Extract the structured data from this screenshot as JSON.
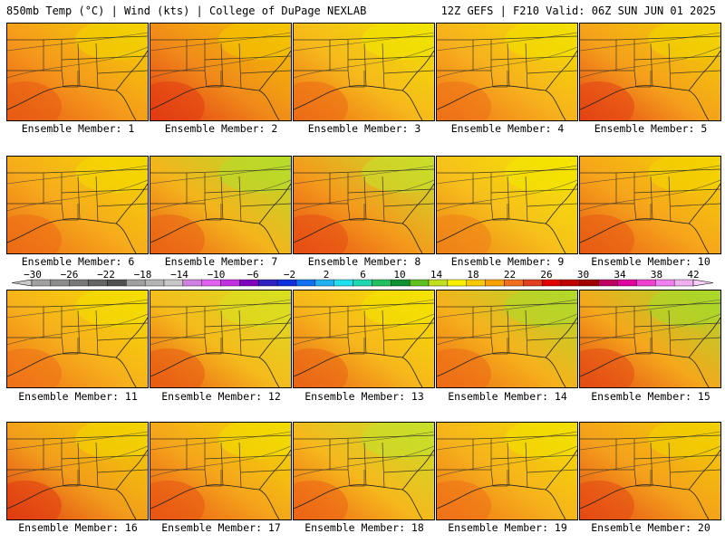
{
  "header": {
    "left": "850mb Temp (°C) | Wind (kts) | College of DuPage NEXLAB",
    "right": "12Z GEFS | F210 Valid: 06Z SUN JUN 01 2025"
  },
  "colorbar": {
    "labels": [
      "−30",
      "−26",
      "−22",
      "−18",
      "−14",
      "−10",
      "−6",
      "−2",
      "2",
      "6",
      "10",
      "14",
      "18",
      "22",
      "26",
      "30",
      "34",
      "38",
      "42"
    ],
    "colors": [
      "#a0a0a0",
      "#8c8c8c",
      "#787878",
      "#646464",
      "#505050",
      "#a0a0a0",
      "#b4b4b4",
      "#c8c8c8",
      "#d080e0",
      "#e060f0",
      "#c030e0",
      "#8000c0",
      "#3020c0",
      "#1030e0",
      "#1070f0",
      "#20b0f0",
      "#20e0f0",
      "#20d8b0",
      "#20c060",
      "#109030",
      "#60c020",
      "#c0e020",
      "#f8f000",
      "#f8c800",
      "#f8a000",
      "#f07020",
      "#e04020",
      "#e00000",
      "#c00000",
      "#a00000",
      "#c00060",
      "#e000a0",
      "#f040d0",
      "#f080f0",
      "#f0b0f0"
    ]
  },
  "members": [
    {
      "caption": "Ensemble Member: 1",
      "base": "#f59a1c",
      "warm": "#e85a14",
      "cool": "#f2d200"
    },
    {
      "caption": "Ensemble Member: 2",
      "base": "#f08a1a",
      "warm": "#e23a12",
      "cool": "#f4c400"
    },
    {
      "caption": "Ensemble Member: 3",
      "base": "#f6b81c",
      "warm": "#ec6a16",
      "cool": "#f0e400"
    },
    {
      "caption": "Ensemble Member: 4",
      "base": "#f7b01e",
      "warm": "#ee7018",
      "cool": "#f2e000"
    },
    {
      "caption": "Ensemble Member: 5",
      "base": "#f5a01c",
      "warm": "#e34214",
      "cool": "#f1d400"
    },
    {
      "caption": "Ensemble Member: 6",
      "base": "#f6aa1c",
      "warm": "#ec6a16",
      "cool": "#f3d800"
    },
    {
      "caption": "Ensemble Member: 7",
      "base": "#f4b41c",
      "warm": "#ea6016",
      "cool": "#b6dc2a"
    },
    {
      "caption": "Ensemble Member: 8",
      "base": "#f49a1c",
      "warm": "#e64c14",
      "cool": "#c8e02a"
    },
    {
      "caption": "Ensemble Member: 9",
      "base": "#f6c01c",
      "warm": "#ee8018",
      "cool": "#f4e600"
    },
    {
      "caption": "Ensemble Member: 10",
      "base": "#f6a41c",
      "warm": "#e85a14",
      "cool": "#f3d400"
    },
    {
      "caption": "Ensemble Member: 11",
      "base": "#f6b01c",
      "warm": "#ee7018",
      "cool": "#f4de00"
    },
    {
      "caption": "Ensemble Member: 12",
      "base": "#f5ba1c",
      "warm": "#e85a14",
      "cool": "#d8e020"
    },
    {
      "caption": "Ensemble Member: 13",
      "base": "#f6b61c",
      "warm": "#ea6216",
      "cool": "#f4e200"
    },
    {
      "caption": "Ensemble Member: 14",
      "base": "#f6b21c",
      "warm": "#ec6a16",
      "cool": "#b0d82a"
    },
    {
      "caption": "Ensemble Member: 15",
      "base": "#f5a81c",
      "warm": "#e44a14",
      "cool": "#a8d82a"
    },
    {
      "caption": "Ensemble Member: 16",
      "base": "#f29c1c",
      "warm": "#e03a12",
      "cool": "#f2d400"
    },
    {
      "caption": "Ensemble Member: 17",
      "base": "#f5a41c",
      "warm": "#e85414",
      "cool": "#f2dc00"
    },
    {
      "caption": "Ensemble Member: 18",
      "base": "#f6b81c",
      "warm": "#ec6216",
      "cool": "#c6e02a"
    },
    {
      "caption": "Ensemble Member: 19",
      "base": "#f6b21c",
      "warm": "#ee7018",
      "cool": "#f2e000"
    },
    {
      "caption": "Ensemble Member: 20",
      "base": "#f4a01c",
      "warm": "#e44814",
      "cool": "#f2d000"
    }
  ]
}
